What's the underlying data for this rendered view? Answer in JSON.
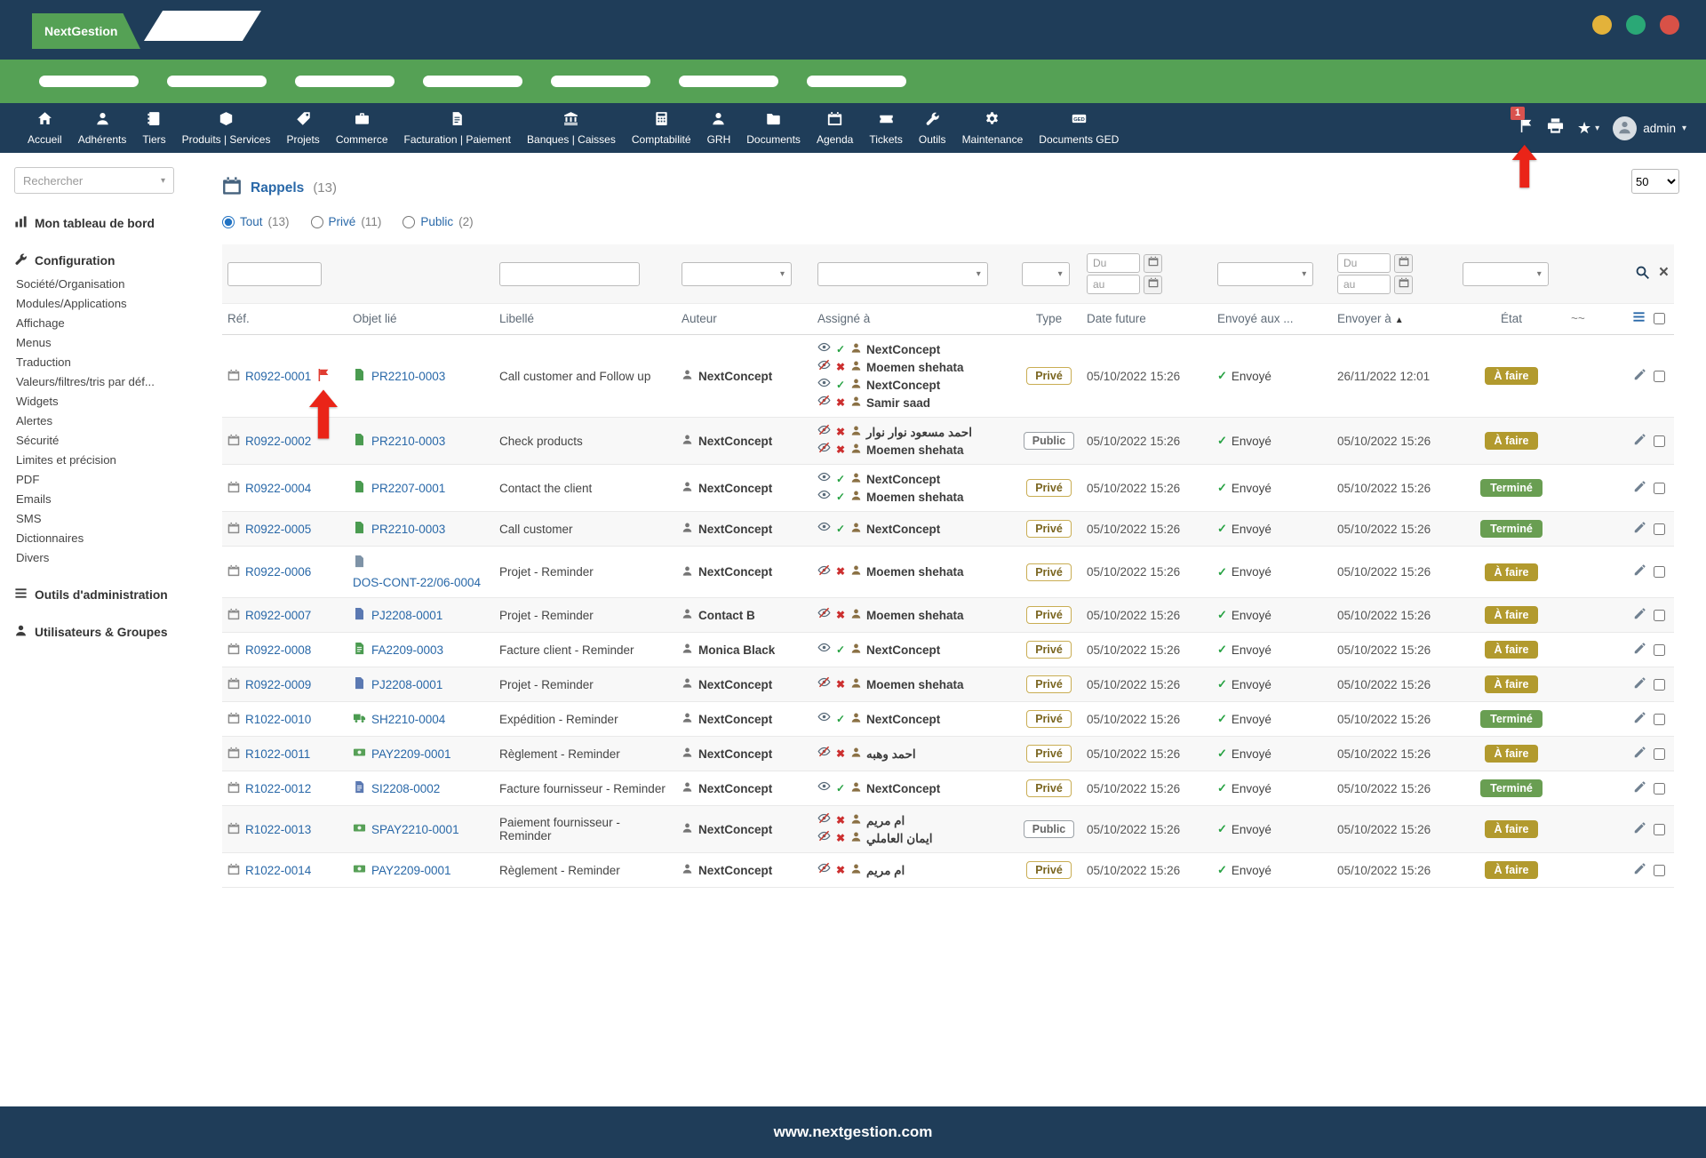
{
  "colors": {
    "navy": "#1f3d59",
    "green": "#55a155",
    "link_blue": "#2968a8",
    "status_todo": "#b29a2e",
    "status_done": "#699e52",
    "badge_red": "#d9534f",
    "annotation_red": "#ea2418",
    "window_dots": [
      "#e3b23a",
      "#2aa876",
      "#d85147"
    ]
  },
  "brand": {
    "logo": "NextGestion",
    "footer": "www.nextgestion.com"
  },
  "navbar": {
    "items": [
      {
        "label": "Accueil",
        "icon": "home-icon"
      },
      {
        "label": "Adhérents",
        "icon": "member-icon"
      },
      {
        "label": "Tiers",
        "icon": "thirdparty-icon"
      },
      {
        "label": "Produits | Services",
        "icon": "products-icon"
      },
      {
        "label": "Projets",
        "icon": "projects-icon"
      },
      {
        "label": "Commerce",
        "icon": "commerce-icon"
      },
      {
        "label": "Facturation | Paiement",
        "icon": "billing-icon"
      },
      {
        "label": "Banques | Caisses",
        "icon": "bank-icon"
      },
      {
        "label": "Comptabilité",
        "icon": "accounting-icon"
      },
      {
        "label": "GRH",
        "icon": "hrm-icon"
      },
      {
        "label": "Documents",
        "icon": "documents-icon"
      },
      {
        "label": "Agenda",
        "icon": "agenda-icon"
      },
      {
        "label": "Tickets",
        "icon": "tickets-icon"
      },
      {
        "label": "Outils",
        "icon": "tools-icon"
      },
      {
        "label": "Maintenance",
        "icon": "maintenance-icon"
      },
      {
        "label": "Documents GED",
        "icon": "ged-icon"
      }
    ],
    "notification_count": "1",
    "user": "admin"
  },
  "sidebar": {
    "search_placeholder": "Rechercher",
    "dashboard": "Mon tableau de bord",
    "configuration": {
      "title": "Configuration",
      "items": [
        "Société/Organisation",
        "Modules/Applications",
        "Affichage",
        "Menus",
        "Traduction",
        "Valeurs/filtres/tris par déf...",
        "Widgets",
        "Alertes",
        "Sécurité",
        "Limites et précision",
        "PDF",
        "Emails",
        "SMS",
        "Dictionnaires",
        "Divers"
      ]
    },
    "admin_tools": "Outils d'administration",
    "users_groups": "Utilisateurs & Groupes"
  },
  "main": {
    "title": "Rappels",
    "count": "(13)",
    "page_size": "50",
    "scope_filters": [
      {
        "label": "Tout",
        "count": "(13)",
        "selected": true
      },
      {
        "label": "Privé",
        "count": "(11)",
        "selected": false
      },
      {
        "label": "Public",
        "count": "(2)",
        "selected": false
      }
    ],
    "table": {
      "headers": [
        "Réf.",
        "Objet lié",
        "Libellé",
        "Auteur",
        "Assigné à",
        "Type",
        "Date future",
        "Envoyé aux ...",
        "Envoyer à",
        "État",
        "~~"
      ],
      "sort_column": "Envoyer à",
      "filter_placeholders": {
        "du": "Du",
        "au": "au"
      },
      "rows": [
        {
          "ref": "R0922-0001",
          "flagged": true,
          "object": "PR2210-0003",
          "object_icon": "project-task-icon",
          "object_color": "#4a9b50",
          "label": "Call customer and Follow up",
          "author": "NextConcept",
          "assignees": [
            {
              "name": "NextConcept",
              "seen": true
            },
            {
              "name": "Moemen shehata",
              "seen": false
            },
            {
              "name": "NextConcept",
              "seen": true
            },
            {
              "name": "Samir saad",
              "seen": false
            }
          ],
          "type": {
            "label": "Privé",
            "kind": "prive"
          },
          "date_future": "05/10/2022 15:26",
          "sent": "Envoyé",
          "send_at": "26/11/2022 12:01",
          "status": {
            "label": "À faire",
            "kind": "todo"
          }
        },
        {
          "ref": "R0922-0002",
          "flagged": false,
          "object": "PR2210-0003",
          "object_icon": "project-task-icon",
          "object_color": "#4a9b50",
          "label": "Check products",
          "author": "NextConcept",
          "assignees": [
            {
              "name": "احمد مسعود نوار نوار",
              "seen": false
            },
            {
              "name": "Moemen shehata",
              "seen": false
            }
          ],
          "type": {
            "label": "Public",
            "kind": "public"
          },
          "date_future": "05/10/2022 15:26",
          "sent": "Envoyé",
          "send_at": "05/10/2022 15:26",
          "status": {
            "label": "À faire",
            "kind": "todo"
          }
        },
        {
          "ref": "R0922-0004",
          "flagged": false,
          "object": "PR2207-0001",
          "object_icon": "project-task-icon",
          "object_color": "#4a9b50",
          "label": "Contact the client",
          "author": "NextConcept",
          "assignees": [
            {
              "name": "NextConcept",
              "seen": true
            },
            {
              "name": "Moemen shehata",
              "seen": true
            }
          ],
          "type": {
            "label": "Privé",
            "kind": "prive"
          },
          "date_future": "05/10/2022 15:26",
          "sent": "Envoyé",
          "send_at": "05/10/2022 15:26",
          "status": {
            "label": "Terminé",
            "kind": "done"
          }
        },
        {
          "ref": "R0922-0005",
          "flagged": false,
          "object": "PR2210-0003",
          "object_icon": "project-task-icon",
          "object_color": "#4a9b50",
          "label": "Call customer",
          "author": "NextConcept",
          "assignees": [
            {
              "name": "NextConcept",
              "seen": true
            }
          ],
          "type": {
            "label": "Privé",
            "kind": "prive"
          },
          "date_future": "05/10/2022 15:26",
          "sent": "Envoyé",
          "send_at": "05/10/2022 15:26",
          "status": {
            "label": "Terminé",
            "kind": "done"
          }
        },
        {
          "ref": "R0922-0006",
          "flagged": false,
          "object": "DOS-CONT-22/06-0004",
          "object_icon": "contract-icon",
          "object_color": "#7e93a7",
          "label": "Projet - Reminder",
          "author": "NextConcept",
          "assignees": [
            {
              "name": "Moemen shehata",
              "seen": false
            }
          ],
          "type": {
            "label": "Privé",
            "kind": "prive"
          },
          "date_future": "05/10/2022 15:26",
          "sent": "Envoyé",
          "send_at": "05/10/2022 15:26",
          "status": {
            "label": "À faire",
            "kind": "todo"
          }
        },
        {
          "ref": "R0922-0007",
          "flagged": false,
          "object": "PJ2208-0001",
          "object_icon": "project-icon",
          "object_color": "#5b79b2",
          "label": "Projet - Reminder",
          "author": "Contact B",
          "assignees": [
            {
              "name": "Moemen shehata",
              "seen": false
            }
          ],
          "type": {
            "label": "Privé",
            "kind": "prive"
          },
          "date_future": "05/10/2022 15:26",
          "sent": "Envoyé",
          "send_at": "05/10/2022 15:26",
          "status": {
            "label": "À faire",
            "kind": "todo"
          }
        },
        {
          "ref": "R0922-0008",
          "flagged": false,
          "object": "FA2209-0003",
          "object_icon": "invoice-icon",
          "object_color": "#4a9b50",
          "label": "Facture client - Reminder",
          "author": "Monica Black",
          "assignees": [
            {
              "name": "NextConcept",
              "seen": true
            }
          ],
          "type": {
            "label": "Privé",
            "kind": "prive"
          },
          "date_future": "05/10/2022 15:26",
          "sent": "Envoyé",
          "send_at": "05/10/2022 15:26",
          "status": {
            "label": "À faire",
            "kind": "todo"
          }
        },
        {
          "ref": "R0922-0009",
          "flagged": false,
          "object": "PJ2208-0001",
          "object_icon": "project-icon",
          "object_color": "#5b79b2",
          "label": "Projet - Reminder",
          "author": "NextConcept",
          "assignees": [
            {
              "name": "Moemen shehata",
              "seen": false
            }
          ],
          "type": {
            "label": "Privé",
            "kind": "prive"
          },
          "date_future": "05/10/2022 15:26",
          "sent": "Envoyé",
          "send_at": "05/10/2022 15:26",
          "status": {
            "label": "À faire",
            "kind": "todo"
          }
        },
        {
          "ref": "R1022-0010",
          "flagged": false,
          "object": "SH2210-0004",
          "object_icon": "shipment-icon",
          "object_color": "#4a9b50",
          "label": "Expédition - Reminder",
          "author": "NextConcept",
          "assignees": [
            {
              "name": "NextConcept",
              "seen": true
            }
          ],
          "type": {
            "label": "Privé",
            "kind": "prive"
          },
          "date_future": "05/10/2022 15:26",
          "sent": "Envoyé",
          "send_at": "05/10/2022 15:26",
          "status": {
            "label": "Terminé",
            "kind": "done"
          }
        },
        {
          "ref": "R1022-0011",
          "flagged": false,
          "object": "PAY2209-0001",
          "object_icon": "payment-icon",
          "object_color": "#57a057",
          "label": "Règlement - Reminder",
          "author": "NextConcept",
          "assignees": [
            {
              "name": "احمد وهبه",
              "seen": false
            }
          ],
          "type": {
            "label": "Privé",
            "kind": "prive"
          },
          "date_future": "05/10/2022 15:26",
          "sent": "Envoyé",
          "send_at": "05/10/2022 15:26",
          "status": {
            "label": "À faire",
            "kind": "todo"
          }
        },
        {
          "ref": "R1022-0012",
          "flagged": false,
          "object": "SI2208-0002",
          "object_icon": "supplier-invoice-icon",
          "object_color": "#5b79b2",
          "label": "Facture fournisseur - Reminder",
          "author": "NextConcept",
          "assignees": [
            {
              "name": "NextConcept",
              "seen": true
            }
          ],
          "type": {
            "label": "Privé",
            "kind": "prive"
          },
          "date_future": "05/10/2022 15:26",
          "sent": "Envoyé",
          "send_at": "05/10/2022 15:26",
          "status": {
            "label": "Terminé",
            "kind": "done"
          }
        },
        {
          "ref": "R1022-0013",
          "flagged": false,
          "object": "SPAY2210-0001",
          "object_icon": "payment-icon",
          "object_color": "#57a057",
          "label": "Paiement fournisseur - Reminder",
          "author": "NextConcept",
          "assignees": [
            {
              "name": "ام مريم",
              "seen": false
            },
            {
              "name": "ايمان العاملي",
              "seen": false
            }
          ],
          "type": {
            "label": "Public",
            "kind": "public"
          },
          "date_future": "05/10/2022 15:26",
          "sent": "Envoyé",
          "send_at": "05/10/2022 15:26",
          "status": {
            "label": "À faire",
            "kind": "todo"
          }
        },
        {
          "ref": "R1022-0014",
          "flagged": false,
          "object": "PAY2209-0001",
          "object_icon": "payment-icon",
          "object_color": "#57a057",
          "label": "Règlement - Reminder",
          "author": "NextConcept",
          "assignees": [
            {
              "name": "ام مريم",
              "seen": false
            }
          ],
          "type": {
            "label": "Privé",
            "kind": "prive"
          },
          "date_future": "05/10/2022 15:26",
          "sent": "Envoyé",
          "send_at": "05/10/2022 15:26",
          "status": {
            "label": "À faire",
            "kind": "todo"
          }
        }
      ]
    }
  }
}
